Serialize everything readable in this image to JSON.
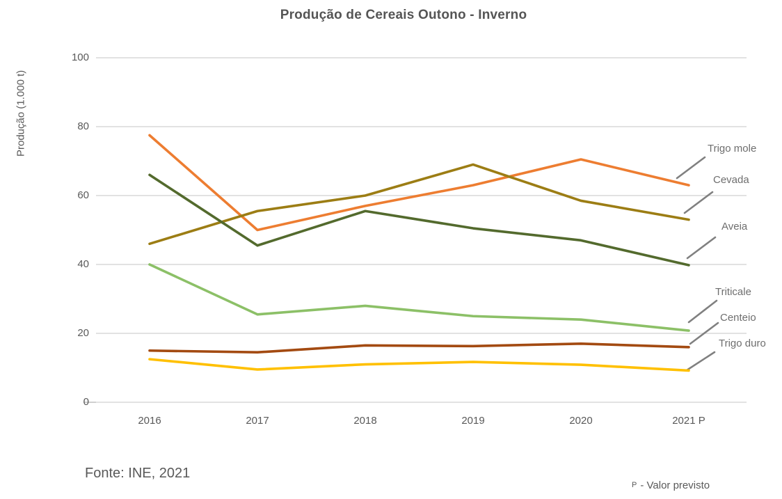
{
  "title": "Produção de Cereais Outono - Inverno",
  "footer": {
    "source": "Fonte: INE, 2021",
    "note_sup": "P",
    "note_text": "- Valor previsto"
  },
  "colors": {
    "title_text": "#555555",
    "axis_text": "#595959",
    "legend_text": "#6E6E6E",
    "grid": "#D9D9D9",
    "leader_line": "#808080",
    "background": "#FFFFFF"
  },
  "chart_data": {
    "type": "line",
    "title": "Produção de Cereais Outono - Inverno",
    "xlabel": "",
    "ylabel": "Produção (1.000 t)",
    "categories": [
      "2016",
      "2017",
      "2018",
      "2019",
      "2020",
      "2021 P"
    ],
    "yticks": [
      0,
      20,
      40,
      60,
      80,
      100
    ],
    "ylim": [
      0,
      100
    ],
    "grid": "horizontal",
    "legend_position": "right-annotated-with-leader-lines",
    "series": [
      {
        "name": "Trigo mole",
        "color": "#ED7D31",
        "values": [
          77.5,
          50.0,
          57.0,
          63.0,
          70.5,
          63.0
        ]
      },
      {
        "name": "Cevada",
        "color": "#9C7D14",
        "values": [
          46.0,
          55.5,
          60.0,
          69.0,
          58.5,
          53.0
        ]
      },
      {
        "name": "Aveia",
        "color": "#536A2D",
        "values": [
          66.0,
          45.5,
          55.5,
          50.5,
          47.0,
          39.8
        ]
      },
      {
        "name": "Triticale",
        "color": "#8CC067",
        "values": [
          40.0,
          25.5,
          28.0,
          25.0,
          24.0,
          20.8
        ]
      },
      {
        "name": "Centeio",
        "color": "#A34A11",
        "values": [
          15.0,
          14.5,
          16.5,
          16.3,
          17.0,
          16.0
        ]
      },
      {
        "name": "Trigo duro",
        "color": "#FFC000",
        "values": [
          12.5,
          9.5,
          11.0,
          11.7,
          10.9,
          9.2
        ]
      }
    ]
  }
}
